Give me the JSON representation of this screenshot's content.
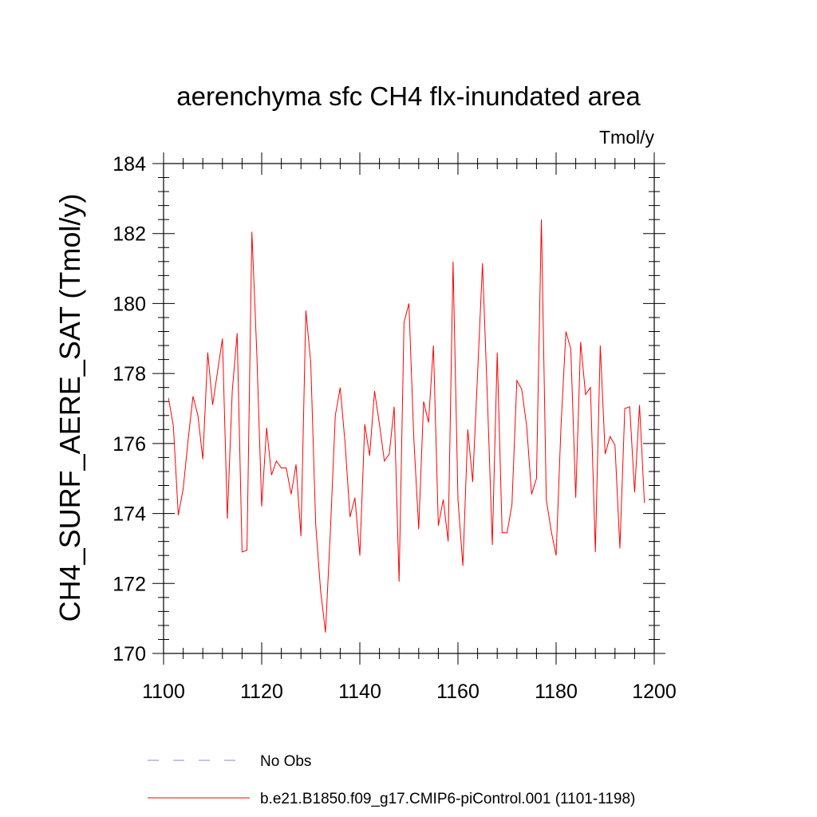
{
  "chart_data": {
    "type": "line",
    "title": "aerenchyma sfc CH4 flx-inundated area",
    "units": "Tmol/y",
    "xlabel": "",
    "ylabel": "CH4_SURF_AERE_SAT  (Tmol/y)",
    "xlim": [
      1100,
      1200
    ],
    "ylim": [
      170,
      184
    ],
    "xticks": [
      1100,
      1120,
      1140,
      1160,
      1180,
      1200
    ],
    "yticks": [
      170,
      172,
      174,
      176,
      178,
      180,
      182,
      184
    ],
    "xtick_labels": [
      "1100",
      "1120",
      "1140",
      "1160",
      "1180",
      "1200"
    ],
    "ytick_labels": [
      "170",
      "172",
      "174",
      "176",
      "178",
      "180",
      "182",
      "184"
    ],
    "x_minor_step": 4,
    "y_minor_step": 0.4,
    "grid": false,
    "legend_position": "bottom",
    "series": [
      {
        "name": "No Obs",
        "color": "#8a8ad0",
        "style": "dashed",
        "x": [],
        "values": []
      },
      {
        "name": "b.e21.B1850.f09_g17.CMIP6-piControl.001 (1101-1198)",
        "color": "#ff0000",
        "style": "solid",
        "x": [
          1101,
          1102,
          1103,
          1104,
          1105,
          1106,
          1107,
          1108,
          1109,
          1110,
          1111,
          1112,
          1113,
          1114,
          1115,
          1116,
          1117,
          1118,
          1119,
          1120,
          1121,
          1122,
          1123,
          1124,
          1125,
          1126,
          1127,
          1128,
          1129,
          1130,
          1131,
          1132,
          1133,
          1134,
          1135,
          1136,
          1137,
          1138,
          1139,
          1140,
          1141,
          1142,
          1143,
          1144,
          1145,
          1146,
          1147,
          1148,
          1149,
          1150,
          1151,
          1152,
          1153,
          1154,
          1155,
          1156,
          1157,
          1158,
          1159,
          1160,
          1161,
          1162,
          1163,
          1164,
          1165,
          1166,
          1167,
          1168,
          1169,
          1170,
          1171,
          1172,
          1173,
          1174,
          1175,
          1176,
          1177,
          1178,
          1179,
          1180,
          1181,
          1182,
          1183,
          1184,
          1185,
          1186,
          1187,
          1188,
          1189,
          1190,
          1191,
          1192,
          1193,
          1194,
          1195,
          1196,
          1197,
          1198
        ],
        "values": [
          177.3,
          176.5,
          173.95,
          174.7,
          176.1,
          177.35,
          176.8,
          175.55,
          178.6,
          177.1,
          178.05,
          179.0,
          173.85,
          177.5,
          179.15,
          172.9,
          172.95,
          182.05,
          178.6,
          174.2,
          176.45,
          175.1,
          175.5,
          175.3,
          175.3,
          174.55,
          175.4,
          173.35,
          179.8,
          178.3,
          173.7,
          171.8,
          170.6,
          173.5,
          176.8,
          177.6,
          176.0,
          173.9,
          174.45,
          172.8,
          176.55,
          175.65,
          177.5,
          176.55,
          175.5,
          175.7,
          177.05,
          172.05,
          179.45,
          180.0,
          176.15,
          173.55,
          177.2,
          176.6,
          178.8,
          173.65,
          174.4,
          173.2,
          181.2,
          174.4,
          172.5,
          176.4,
          174.9,
          178.0,
          181.15,
          177.3,
          173.1,
          178.6,
          173.45,
          173.45,
          174.25,
          177.8,
          177.55,
          176.5,
          174.55,
          175.0,
          182.4,
          174.4,
          173.5,
          172.8,
          176.5,
          179.2,
          178.7,
          174.45,
          178.9,
          177.4,
          177.6,
          172.9,
          178.8,
          175.7,
          176.2,
          175.95,
          173.0,
          177.0,
          177.05,
          174.6,
          177.1,
          174.3
        ]
      }
    ]
  }
}
